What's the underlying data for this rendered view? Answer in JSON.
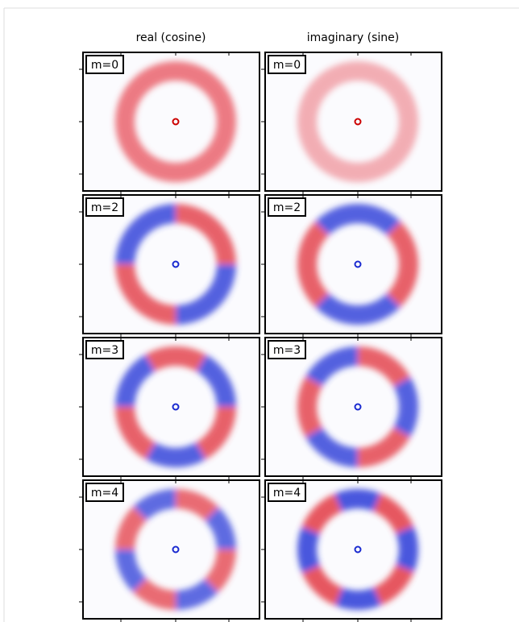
{
  "columns": [
    "real (cosine)",
    "imaginary (sine)"
  ],
  "rows": [
    [
      "m=0",
      "m=0"
    ],
    [
      "m=2",
      "m=2"
    ],
    [
      "m=3",
      "m=3"
    ],
    [
      "m=4",
      "m=4"
    ]
  ]
}
